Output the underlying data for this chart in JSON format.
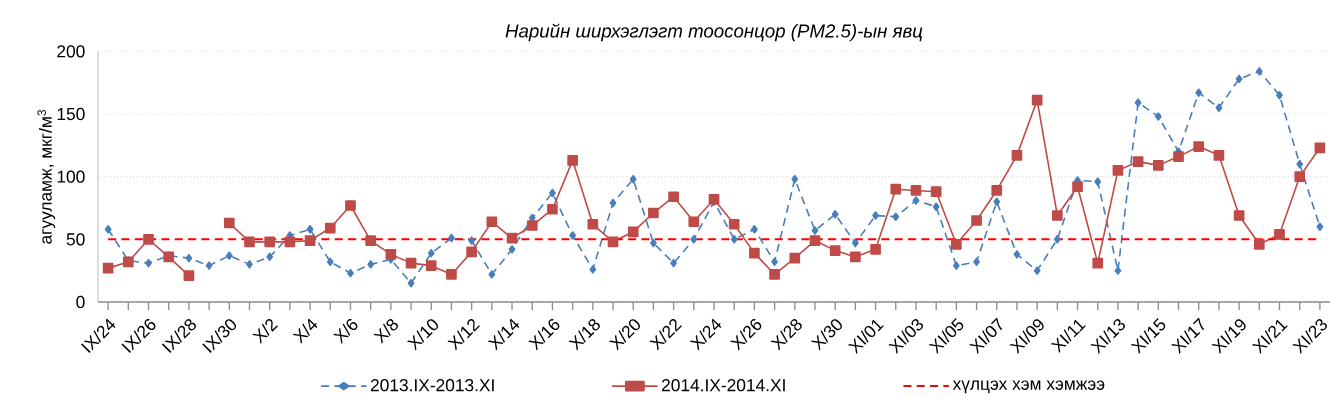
{
  "chart_data": {
    "type": "line",
    "title": "Нарийн ширхэглэгт тоосонцор (PM2.5)-ын явц",
    "ylabel": "агууламж, мкг/м$^{3}$",
    "categories": [
      "IX/24",
      null,
      "IX/26",
      null,
      "IX/28",
      null,
      "IX/30",
      null,
      "X/2",
      null,
      "X/4",
      null,
      "X/6",
      null,
      "X/8",
      null,
      "X/10",
      null,
      "X/12",
      null,
      "X/14",
      null,
      "X/16",
      null,
      "X/18",
      null,
      "X/20",
      null,
      "X/22",
      null,
      "X/24",
      null,
      "X/26",
      null,
      "X/28",
      null,
      "X/30",
      null,
      "XI/01",
      null,
      "XI/03",
      null,
      "XI/05",
      null,
      "XI/07",
      null,
      "XI/09",
      null,
      "XI/11",
      null,
      "XI/13",
      null,
      "XI/15",
      null,
      "XI/17",
      null,
      "XI/19",
      null,
      "XI/21",
      null,
      "XI/23"
    ],
    "series": [
      {
        "name": "2013.IX-2013.XI",
        "color": "#4a7ebb",
        "marker": "diamond",
        "line_style": "dashed",
        "values": [
          58,
          33,
          31,
          37,
          35,
          29,
          37,
          30,
          36,
          53,
          58,
          32,
          23,
          30,
          34,
          15,
          39,
          51,
          49,
          22,
          42,
          67,
          87,
          53,
          26,
          79,
          98,
          47,
          31,
          50,
          80,
          50,
          58,
          32,
          98,
          57,
          70,
          47,
          69,
          68,
          81,
          76,
          29,
          32,
          80,
          38,
          25,
          50,
          97,
          96,
          25,
          159,
          148,
          120,
          167,
          155,
          178,
          184,
          165,
          110,
          60
        ]
      },
      {
        "name": "2014.IX-2014.XI",
        "color": "#be4b48",
        "marker": "square",
        "line_style": "solid",
        "values": [
          27,
          32,
          50,
          36,
          21,
          null,
          63,
          48,
          48,
          48,
          49,
          59,
          77,
          49,
          38,
          31,
          29,
          22,
          40,
          64,
          51,
          61,
          74,
          113,
          62,
          48,
          56,
          71,
          84,
          64,
          82,
          62,
          39,
          22,
          35,
          49,
          41,
          36,
          42,
          90,
          89,
          88,
          46,
          65,
          89,
          117,
          161,
          69,
          92,
          31,
          105,
          112,
          109,
          116,
          124,
          117,
          69,
          46,
          54,
          100,
          123
        ]
      }
    ],
    "ylim": [
      0,
      200
    ],
    "yticks": [
      0,
      50,
      100,
      150,
      200
    ],
    "grid": "y",
    "legend": "bottom",
    "ref_lines": [
      {
        "axis": "y",
        "value": 50,
        "label": "хүлцэх хэм хэмжээ",
        "color": "#ff0000",
        "line_style": "dashed"
      }
    ]
  }
}
